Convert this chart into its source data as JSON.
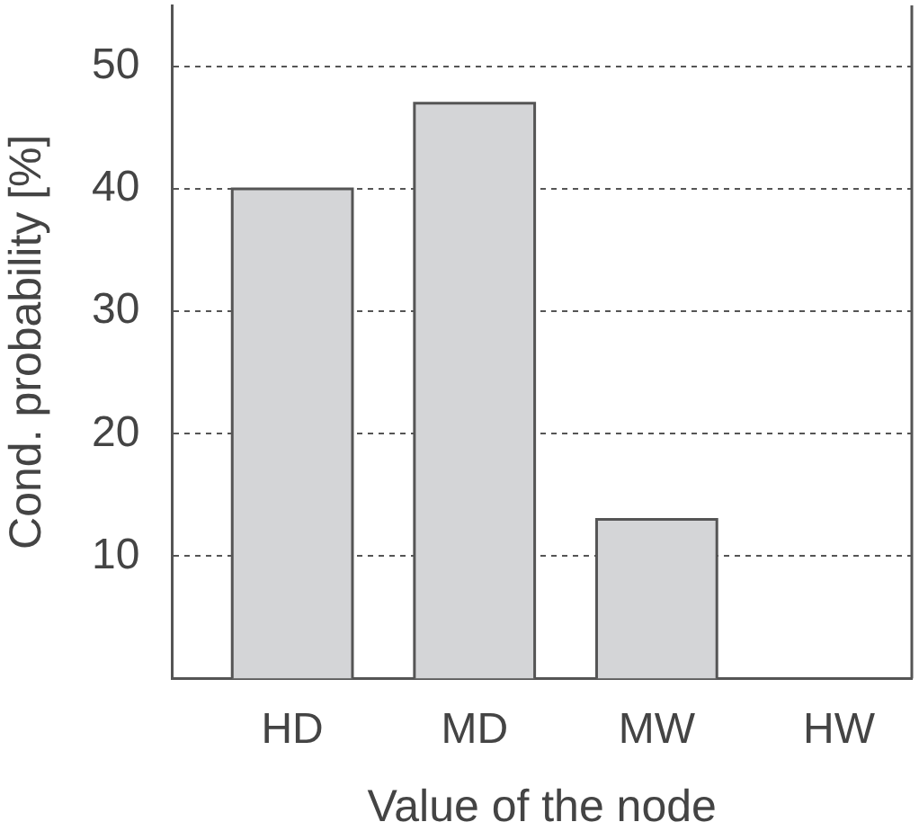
{
  "chart_data": {
    "type": "bar",
    "xlabel": "Value of the node",
    "ylabel": "Cond. probability [%]",
    "categories": [
      "HD",
      "MD",
      "MW",
      "HW"
    ],
    "values": [
      40,
      47,
      13,
      0
    ],
    "color": "#d4d5d7",
    "ylim": [
      0,
      55
    ],
    "yticks": [
      10,
      20,
      30,
      40,
      50
    ],
    "grid": "y",
    "legend": false
  }
}
